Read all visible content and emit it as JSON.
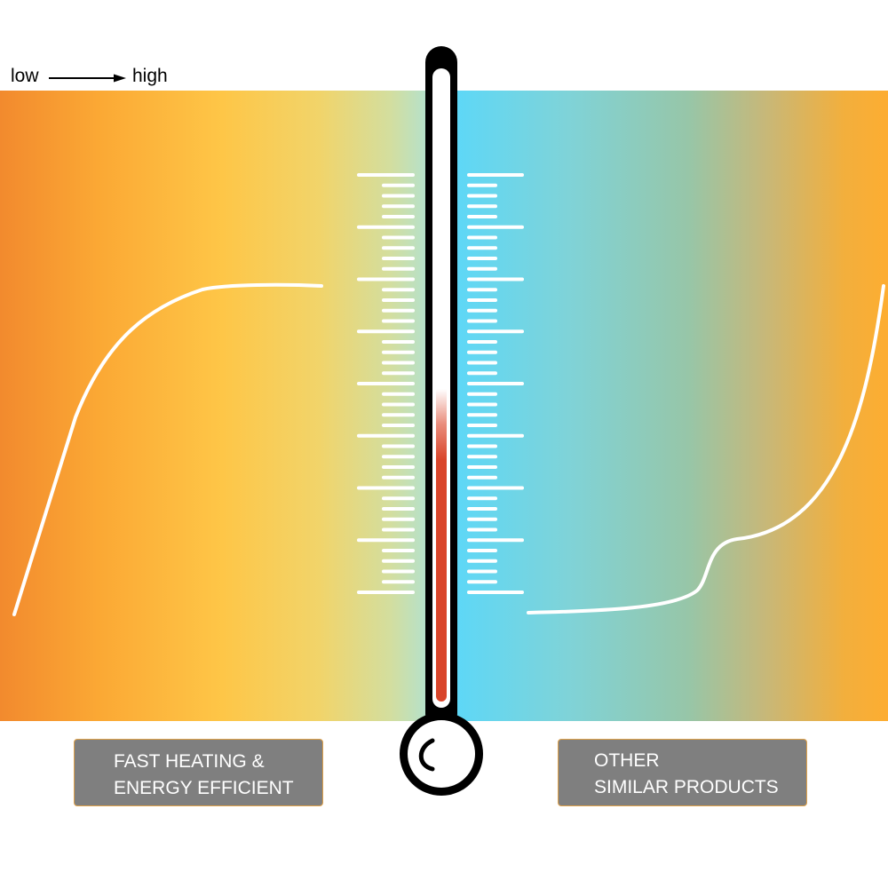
{
  "legend": {
    "low_label": "low",
    "high_label": "high"
  },
  "left_panel": {
    "label_line1": "FAST HEATING &",
    "label_line2": "ENERGY EFFICIENT",
    "gradient_colors": [
      "#f28a2e",
      "#fba834",
      "#fec647",
      "#f1d46a",
      "#d3de9f",
      "#a7e3e0"
    ]
  },
  "right_panel": {
    "label_line1": "OTHER",
    "label_line2": "SIMILAR PRODUCTS",
    "gradient_colors": [
      "#5ad8fa",
      "#7fd3d8",
      "#97c6a8",
      "#c6b87a",
      "#f2af3d",
      "#fdad31"
    ]
  },
  "thermometer": {
    "fill_color": "#d9452a",
    "body_color": "#000000",
    "fill_level": 0.55
  },
  "colors": {
    "label_box_bg": "#7f7f7f",
    "label_box_border": "#e0a24a",
    "curve": "#ffffff",
    "tick": "#ffffff"
  }
}
